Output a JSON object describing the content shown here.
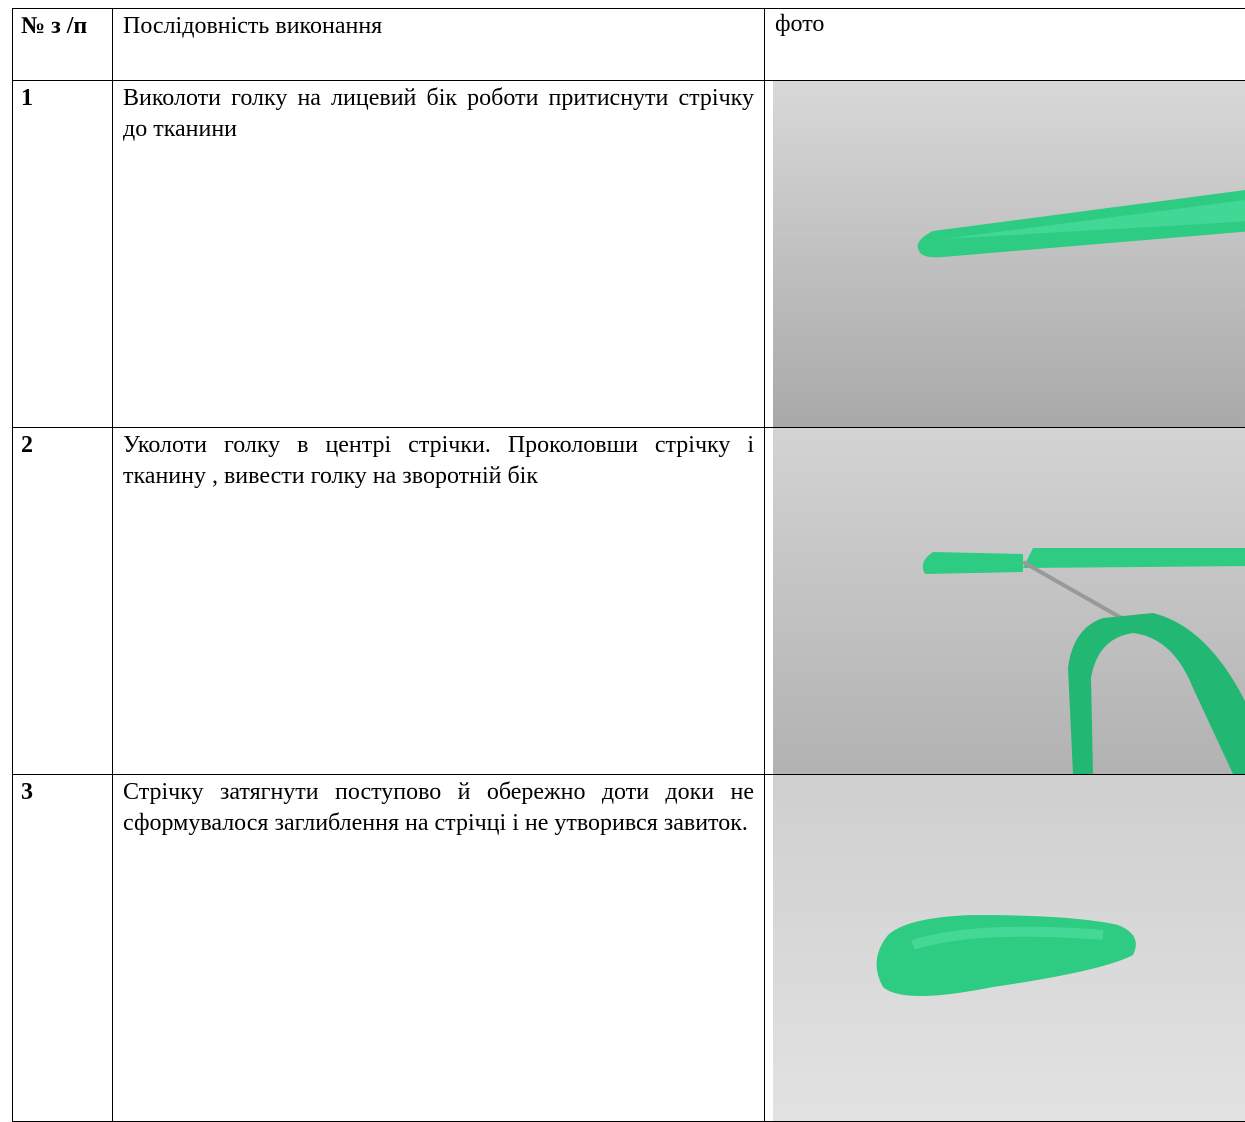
{
  "table": {
    "header": [
      "№ з /п",
      "Послідовність виконання",
      "фото"
    ],
    "rows": [
      [
        "1",
        "Виколоти голку на лицевий бік роботи притиснути стрічку до тканини"
      ],
      [
        "2",
        "Уколоти голку в центрі стрічки. Проколовши стрічку і тканину , вивести голку на зворотній бік"
      ],
      [
        "3",
        "Стрічку затягнути поступово й обережно доти доки не сформувалося заглиблення на стрічці і не утворився завиток."
      ]
    ]
  }
}
